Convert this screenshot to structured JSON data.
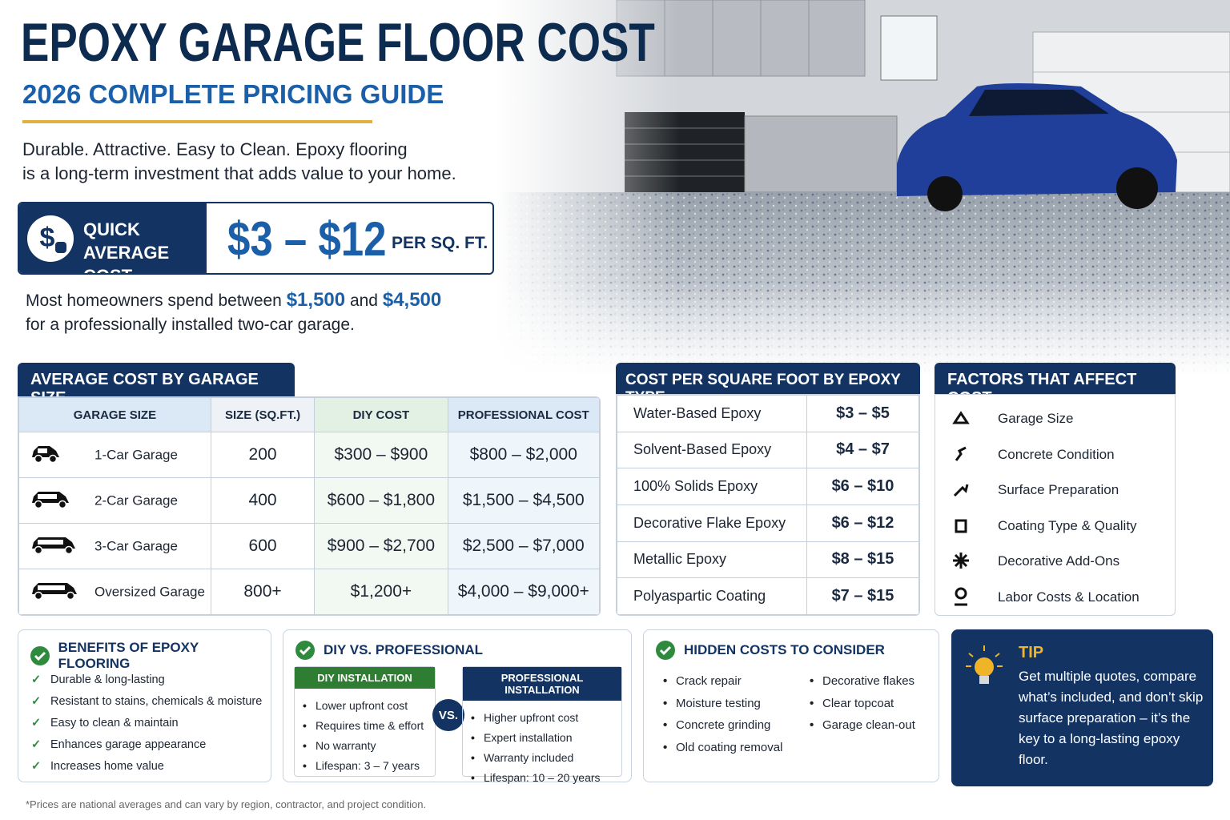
{
  "header": {
    "title": "EPOXY GARAGE FLOOR COST",
    "subtitle": "2026 COMPLETE PRICING GUIDE",
    "intro": [
      "Durable. Attractive. Easy to Clean. Epoxy flooring",
      "is a long-term investment that adds value to your home."
    ]
  },
  "quick_cost": {
    "label": [
      "QUICK",
      "AVERAGE COST"
    ],
    "range": "$3 – $12",
    "unit": "PER SQ. FT."
  },
  "spend_note": {
    "before": "Most homeowners spend between",
    "low": "$1,500",
    "and": "and",
    "high": "$4,500",
    "after": "for a professionally installed two-car garage."
  },
  "size_table": {
    "title": "AVERAGE COST BY GARAGE SIZE",
    "headers": [
      "GARAGE SIZE",
      "SIZE (SQ.FT.)",
      "DIY COST",
      "PROFESSIONAL COST"
    ],
    "rows": [
      [
        "1-Car Garage",
        "200",
        "$300 – $900",
        "$800 – $2,000"
      ],
      [
        "2-Car Garage",
        "400",
        "$600 – $1,800",
        "$1,500 – $4,500"
      ],
      [
        "3-Car Garage",
        "600",
        "$900 – $2,700",
        "$2,500 – $7,000"
      ],
      [
        "Oversized Garage",
        "800+",
        "$1,200+",
        "$4,000 – $9,000+"
      ]
    ]
  },
  "type_table": {
    "title": "COST PER SQUARE FOOT BY EPOXY TYPE",
    "rows": [
      [
        "Water-Based Epoxy",
        "$3 – $5"
      ],
      [
        "Solvent-Based Epoxy",
        "$4 – $7"
      ],
      [
        "100% Solids Epoxy",
        "$6 – $10"
      ],
      [
        "Decorative Flake Epoxy",
        "$6 – $12"
      ],
      [
        "Metallic Epoxy",
        "$8 – $15"
      ],
      [
        "Polyaspartic Coating",
        "$7 – $15"
      ]
    ]
  },
  "factors": {
    "title": "FACTORS THAT AFFECT COST",
    "items": [
      "Garage Size",
      "Concrete Condition",
      "Surface Preparation",
      "Coating Type & Quality",
      "Decorative Add-Ons",
      "Labor Costs & Location"
    ]
  },
  "benefits": {
    "title": "BENEFITS OF EPOXY FLOORING",
    "items": [
      "Durable & long-lasting",
      "Resistant to stains, chemicals & moisture",
      "Easy to clean & maintain",
      "Enhances garage appearance",
      "Increases home value"
    ]
  },
  "diy_vs_pro": {
    "title": "DIY VS. PROFESSIONAL",
    "diy": {
      "title": "DIY INSTALLATION",
      "items": [
        "Lower upfront cost",
        "Requires time & effort",
        "No warranty",
        "Lifespan: 3 – 7 years"
      ]
    },
    "vs": "VS.",
    "pro": {
      "title": "PROFESSIONAL INSTALLATION",
      "items": [
        "Higher upfront cost",
        "Expert installation",
        "Warranty included",
        "Lifespan: 10 – 20 years"
      ]
    }
  },
  "hidden_costs": {
    "title": "HIDDEN COSTS TO CONSIDER",
    "items": [
      "Crack repair",
      "Moisture testing",
      "Concrete grinding",
      "Old coating removal",
      "Decorative flakes",
      "Clear topcoat",
      "Garage clean-out"
    ]
  },
  "tip": {
    "title": "TIP",
    "text": "Get multiple quotes, compare what’s included, and don’t skip surface preparation – it’s the key to a long-lasting epoxy floor."
  },
  "footnote": "*Prices are national averages and can vary by region, contractor, and project condition."
}
